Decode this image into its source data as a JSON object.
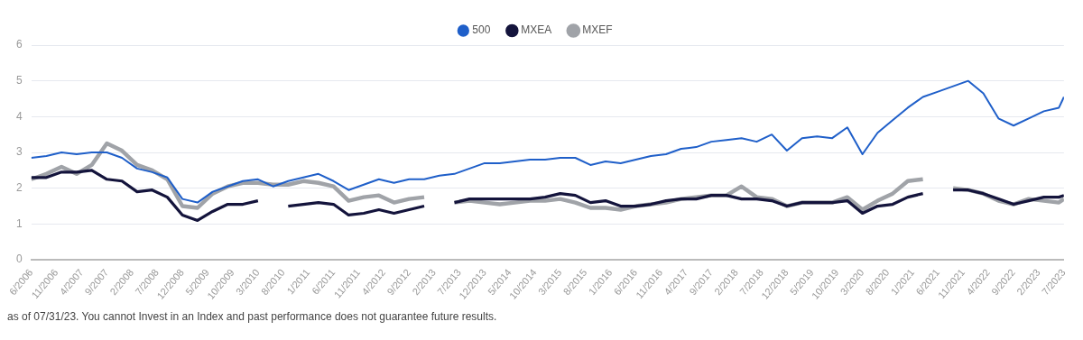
{
  "chart_data": {
    "type": "line",
    "x": [
      "2006-06",
      "2006-09",
      "2006-12",
      "2007-03",
      "2007-06",
      "2007-09",
      "2007-12",
      "2008-03",
      "2008-06",
      "2008-09",
      "2008-12",
      "2009-03",
      "2009-06",
      "2009-09",
      "2009-12",
      "2010-03",
      "2010-06",
      "2010-09",
      "2010-12",
      "2011-03",
      "2011-06",
      "2011-09",
      "2011-12",
      "2012-03",
      "2012-06",
      "2012-09",
      "2012-12",
      "2013-03",
      "2013-06",
      "2013-09",
      "2013-12",
      "2014-03",
      "2014-06",
      "2014-09",
      "2014-12",
      "2015-03",
      "2015-06",
      "2015-09",
      "2015-12",
      "2016-03",
      "2016-06",
      "2016-09",
      "2016-12",
      "2017-03",
      "2017-06",
      "2017-09",
      "2017-12",
      "2018-03",
      "2018-06",
      "2018-09",
      "2018-12",
      "2019-03",
      "2019-06",
      "2019-09",
      "2019-12",
      "2020-03",
      "2020-06",
      "2020-09",
      "2020-12",
      "2021-03",
      "2021-06",
      "2021-09",
      "2021-12",
      "2022-03",
      "2022-06",
      "2022-09",
      "2022-12",
      "2023-03",
      "2023-06",
      "2023-07"
    ],
    "series": [
      {
        "name": "500",
        "color": "#1f5fc9",
        "values": [
          2.85,
          2.9,
          3.0,
          2.95,
          3.0,
          3.0,
          2.85,
          2.55,
          2.45,
          2.3,
          1.7,
          1.6,
          1.9,
          2.05,
          2.2,
          2.25,
          2.05,
          2.2,
          2.3,
          2.4,
          2.2,
          1.95,
          2.1,
          2.25,
          2.15,
          2.25,
          2.25,
          2.35,
          2.4,
          2.55,
          2.7,
          2.7,
          2.75,
          2.8,
          2.8,
          2.85,
          2.85,
          2.65,
          2.75,
          2.7,
          2.8,
          2.9,
          2.95,
          3.1,
          3.15,
          3.3,
          3.35,
          3.4,
          3.3,
          3.5,
          3.05,
          3.4,
          3.45,
          3.4,
          3.7,
          2.95,
          3.55,
          3.9,
          4.25,
          4.55,
          4.7,
          4.85,
          5.0,
          4.65,
          3.95,
          3.75,
          3.95,
          4.15,
          4.25,
          4.55
        ]
      },
      {
        "name": "MXEA",
        "color": "#14143c",
        "values": [
          2.3,
          2.3,
          2.45,
          2.45,
          2.5,
          2.25,
          2.2,
          1.9,
          1.95,
          1.75,
          1.25,
          1.1,
          1.35,
          1.55,
          1.55,
          1.65,
          null,
          1.5,
          1.55,
          1.6,
          1.55,
          1.25,
          1.3,
          1.4,
          1.3,
          1.4,
          1.5,
          null,
          1.6,
          1.7,
          1.7,
          1.7,
          1.7,
          1.7,
          1.75,
          1.85,
          1.8,
          1.6,
          1.65,
          1.5,
          1.5,
          1.55,
          1.65,
          1.7,
          1.7,
          1.8,
          1.8,
          1.7,
          1.7,
          1.65,
          1.5,
          1.6,
          1.6,
          1.6,
          1.65,
          1.3,
          1.5,
          1.55,
          1.75,
          1.85,
          null,
          1.95,
          1.95,
          1.85,
          1.7,
          1.55,
          1.65,
          1.75,
          1.75,
          1.8
        ]
      },
      {
        "name": "MXEF",
        "color": "#a0a3a8",
        "values": [
          2.25,
          2.4,
          2.6,
          2.4,
          2.65,
          3.25,
          3.05,
          2.65,
          2.5,
          2.25,
          1.5,
          1.45,
          1.85,
          2.05,
          2.15,
          2.15,
          2.1,
          2.1,
          2.2,
          2.15,
          2.05,
          1.65,
          1.75,
          1.8,
          1.6,
          1.7,
          1.75,
          null,
          1.6,
          1.65,
          1.6,
          1.55,
          1.6,
          1.65,
          1.65,
          1.7,
          1.6,
          1.45,
          1.45,
          1.4,
          1.5,
          1.55,
          1.6,
          1.7,
          1.75,
          1.8,
          1.8,
          2.05,
          1.75,
          1.7,
          1.5,
          1.6,
          1.6,
          1.6,
          1.75,
          1.4,
          1.65,
          1.85,
          2.2,
          2.25,
          null,
          2.0,
          1.95,
          1.85,
          1.65,
          1.55,
          1.7,
          1.65,
          1.6,
          1.7
        ]
      }
    ],
    "ylim": [
      0,
      6
    ],
    "yticks": [
      0,
      1,
      2,
      3,
      4,
      5,
      6
    ],
    "xlim": [
      "2006-06",
      "2023-07"
    ],
    "xticks": [
      {
        "value": "2006-06",
        "label": "6/2006"
      },
      {
        "value": "2006-11",
        "label": "11/2006"
      },
      {
        "value": "2007-04",
        "label": "4/2007"
      },
      {
        "value": "2007-09",
        "label": "9/2007"
      },
      {
        "value": "2008-02",
        "label": "2/2008"
      },
      {
        "value": "2008-07",
        "label": "7/2008"
      },
      {
        "value": "2008-12",
        "label": "12/2008"
      },
      {
        "value": "2009-05",
        "label": "5/2009"
      },
      {
        "value": "2009-10",
        "label": "10/2009"
      },
      {
        "value": "2010-03",
        "label": "3/2010"
      },
      {
        "value": "2010-08",
        "label": "8/2010"
      },
      {
        "value": "2011-01",
        "label": "1/2011"
      },
      {
        "value": "2011-06",
        "label": "6/2011"
      },
      {
        "value": "2011-11",
        "label": "11/2011"
      },
      {
        "value": "2012-04",
        "label": "4/2012"
      },
      {
        "value": "2012-09",
        "label": "9/2012"
      },
      {
        "value": "2013-02",
        "label": "2/2013"
      },
      {
        "value": "2013-07",
        "label": "7/2013"
      },
      {
        "value": "2013-12",
        "label": "12/2013"
      },
      {
        "value": "2014-05",
        "label": "5/2014"
      },
      {
        "value": "2014-10",
        "label": "10/2014"
      },
      {
        "value": "2015-03",
        "label": "3/2015"
      },
      {
        "value": "2015-08",
        "label": "8/2015"
      },
      {
        "value": "2016-01",
        "label": "1/2016"
      },
      {
        "value": "2016-06",
        "label": "6/2016"
      },
      {
        "value": "2016-11",
        "label": "11/2016"
      },
      {
        "value": "2017-04",
        "label": "4/2017"
      },
      {
        "value": "2017-09",
        "label": "9/2017"
      },
      {
        "value": "2018-02",
        "label": "2/2018"
      },
      {
        "value": "2018-07",
        "label": "7/2018"
      },
      {
        "value": "2018-12",
        "label": "12/2018"
      },
      {
        "value": "2019-05",
        "label": "5/2019"
      },
      {
        "value": "2019-10",
        "label": "10/2019"
      },
      {
        "value": "2020-03",
        "label": "3/2020"
      },
      {
        "value": "2020-08",
        "label": "8/2020"
      },
      {
        "value": "2021-01",
        "label": "1/2021"
      },
      {
        "value": "2021-06",
        "label": "6/2021"
      },
      {
        "value": "2021-11",
        "label": "11/2021"
      },
      {
        "value": "2022-04",
        "label": "4/2022"
      },
      {
        "value": "2022-09",
        "label": "9/2022"
      },
      {
        "value": "2023-02",
        "label": "2/2023"
      },
      {
        "value": "2023-07",
        "label": "7/2023"
      }
    ],
    "grid": "y",
    "legend": "top",
    "marker": "none",
    "line_style": "solid",
    "annotations": [
      "as of 07/31/23. You cannot Invest in an Index and past performance does not guarantee future results."
    ]
  }
}
